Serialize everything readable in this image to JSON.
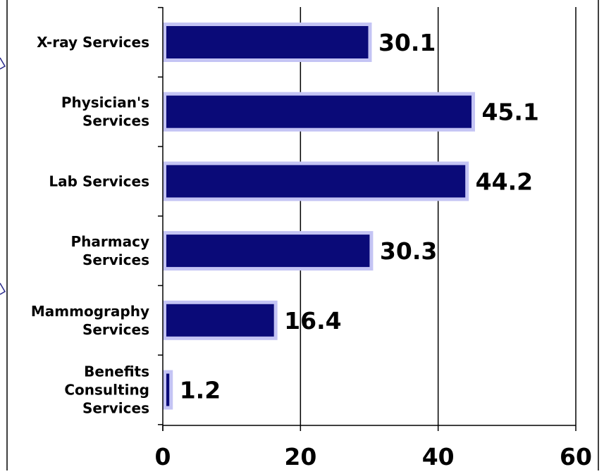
{
  "chart_data": {
    "type": "bar",
    "orientation": "horizontal",
    "categories": [
      [
        "X-ray Services"
      ],
      [
        "Physician's",
        "Services"
      ],
      [
        "Lab Services"
      ],
      [
        "Pharmacy",
        "Services"
      ],
      [
        "Mammography",
        "Services"
      ],
      [
        "Benefits",
        "Consulting",
        "Services"
      ]
    ],
    "values": [
      30.1,
      45.1,
      44.2,
      30.3,
      16.4,
      1.2
    ],
    "value_labels": [
      "30.1",
      "45.1",
      "44.2",
      "30.3",
      "16.4",
      "1.2"
    ],
    "x_ticks": [
      0,
      20,
      40,
      60
    ],
    "xlim": [
      0,
      60
    ],
    "grid": "vertical",
    "title": "",
    "xlabel": "",
    "ylabel": "",
    "colors": {
      "bar_fill": "#0a0a78",
      "bar_border": "#c4c4f4",
      "gridline": "#000000",
      "axis": "#000000",
      "arrow": "#2a2a8a"
    }
  }
}
